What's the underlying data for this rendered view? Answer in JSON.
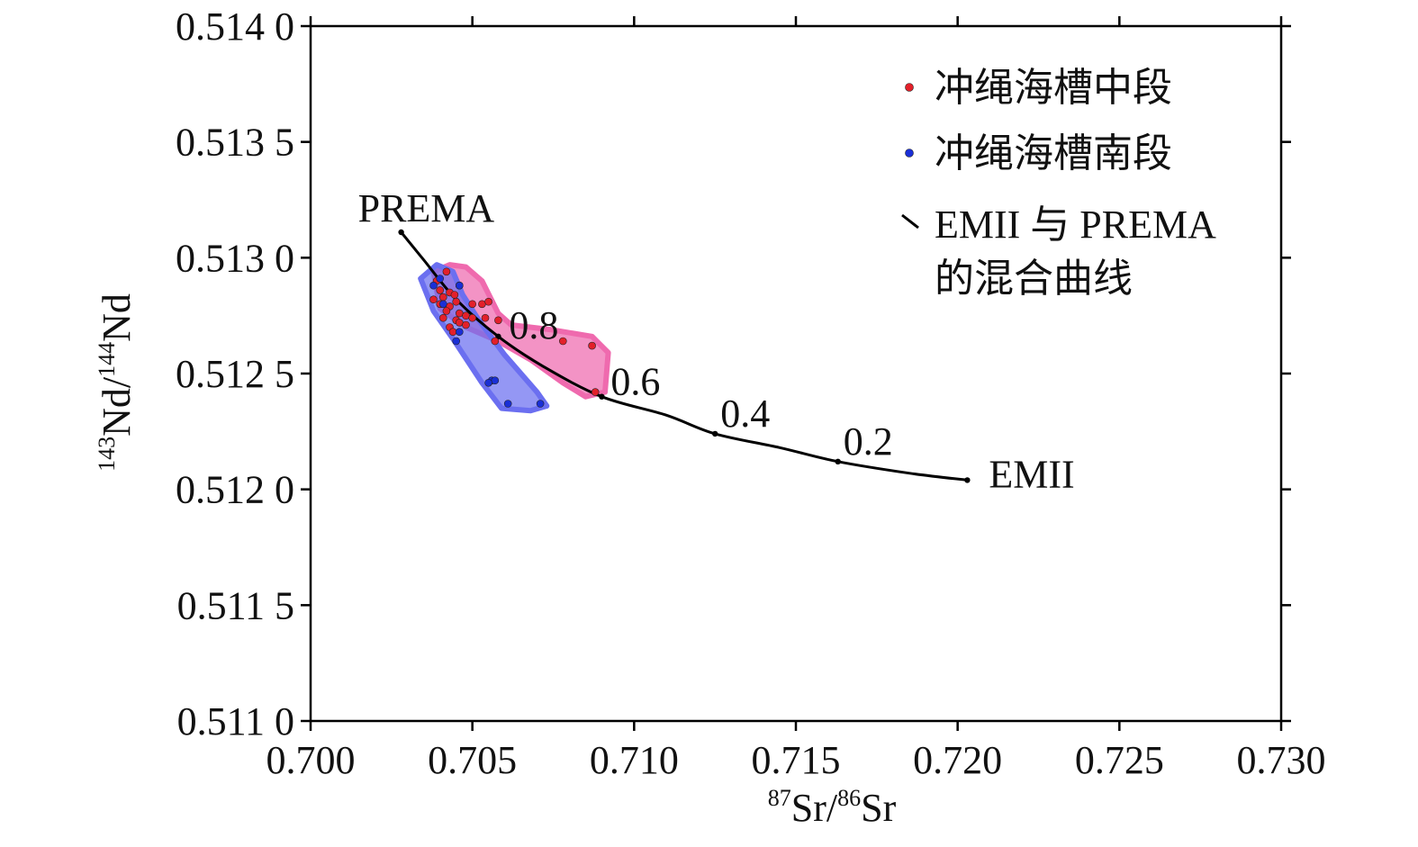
{
  "chart_data": {
    "type": "scatter",
    "title": "",
    "xlabel": {
      "sup1": "87",
      "base1": "Sr/",
      "sup2": "86",
      "base2": "Sr"
    },
    "ylabel": {
      "sup1": "143",
      "base1": "Nd/",
      "sup2": "144",
      "base2": "Nd"
    },
    "xlim": [
      0.7,
      0.73
    ],
    "ylim": [
      0.511,
      0.514
    ],
    "x_ticks": [
      {
        "value": 0.7,
        "label": "0.700"
      },
      {
        "value": 0.705,
        "label": "0.705"
      },
      {
        "value": 0.71,
        "label": "0.710"
      },
      {
        "value": 0.715,
        "label": "0.715"
      },
      {
        "value": 0.72,
        "label": "0.720"
      },
      {
        "value": 0.725,
        "label": "0.725"
      },
      {
        "value": 0.73,
        "label": "0.730"
      }
    ],
    "y_ticks": [
      {
        "value": 0.511,
        "label": "0.511 0"
      },
      {
        "value": 0.5115,
        "label": "0.511 5"
      },
      {
        "value": 0.512,
        "label": "0.512 0"
      },
      {
        "value": 0.5125,
        "label": "0.512 5"
      },
      {
        "value": 0.513,
        "label": "0.513 0"
      },
      {
        "value": 0.5135,
        "label": "0.513 5"
      },
      {
        "value": 0.514,
        "label": "0.514 0"
      }
    ],
    "grid": false,
    "legend_position": "top-right",
    "colors": {
      "middle": "#e3202a",
      "south": "#1a2fd6",
      "middle_fill": "#ef6aae",
      "south_fill": "#6b6ff0",
      "curve": "#000000"
    },
    "series": [
      {
        "name": "冲绳海槽中段",
        "points": [
          [
            0.7042,
            0.51294
          ],
          [
            0.7039,
            0.5129
          ],
          [
            0.7046,
            0.51288
          ],
          [
            0.704,
            0.51286
          ],
          [
            0.7043,
            0.51285
          ],
          [
            0.70445,
            0.51284
          ],
          [
            0.7041,
            0.51283
          ],
          [
            0.7038,
            0.51282
          ],
          [
            0.7045,
            0.51281
          ],
          [
            0.704,
            0.5128
          ],
          [
            0.7043,
            0.51279
          ],
          [
            0.705,
            0.5128
          ],
          [
            0.7053,
            0.5128
          ],
          [
            0.7055,
            0.51281
          ],
          [
            0.7042,
            0.51277
          ],
          [
            0.7046,
            0.51276
          ],
          [
            0.7048,
            0.51275
          ],
          [
            0.7041,
            0.51274
          ],
          [
            0.705,
            0.51274
          ],
          [
            0.7054,
            0.51274
          ],
          [
            0.7045,
            0.51273
          ],
          [
            0.7058,
            0.51273
          ],
          [
            0.7046,
            0.51272
          ],
          [
            0.7048,
            0.51271
          ],
          [
            0.7043,
            0.5127
          ],
          [
            0.7044,
            0.51268
          ],
          [
            0.7057,
            0.51264
          ],
          [
            0.7078,
            0.51264
          ],
          [
            0.7087,
            0.51262
          ],
          [
            0.7088,
            0.51242
          ]
        ]
      },
      {
        "name": "冲绳海槽南段",
        "points": [
          [
            0.704,
            0.51291
          ],
          [
            0.7038,
            0.51288
          ],
          [
            0.7046,
            0.51288
          ],
          [
            0.7041,
            0.5128
          ],
          [
            0.7046,
            0.51268
          ],
          [
            0.7045,
            0.51264
          ],
          [
            0.7056,
            0.51247
          ],
          [
            0.7057,
            0.51247
          ],
          [
            0.7055,
            0.51246
          ],
          [
            0.7061,
            0.51237
          ],
          [
            0.7071,
            0.51237
          ]
        ]
      }
    ],
    "mixing_curve": {
      "name": "EMII 与 PREMA 的混合曲线",
      "points": [
        [
          0.7028,
          0.51311
        ],
        [
          0.7035,
          0.51299
        ],
        [
          0.7045,
          0.51282
        ],
        [
          0.7058,
          0.51266
        ],
        [
          0.7072,
          0.51253
        ],
        [
          0.709,
          0.5124
        ],
        [
          0.711,
          0.51232
        ],
        [
          0.7125,
          0.51224
        ],
        [
          0.7145,
          0.51218
        ],
        [
          0.7163,
          0.51212
        ],
        [
          0.7185,
          0.51207
        ],
        [
          0.7203,
          0.51204
        ]
      ],
      "marks": [
        {
          "x": 0.7028,
          "y": 0.51311,
          "label": "PREMA"
        },
        {
          "x": 0.7058,
          "y": 0.51266,
          "label": "0.8"
        },
        {
          "x": 0.709,
          "y": 0.5124,
          "label": "0.6"
        },
        {
          "x": 0.7125,
          "y": 0.51224,
          "label": "0.4"
        },
        {
          "x": 0.7163,
          "y": 0.51212,
          "label": "0.2"
        },
        {
          "x": 0.7203,
          "y": 0.51204,
          "label": "EMII"
        }
      ]
    },
    "fields": [
      {
        "name": "middle",
        "polygon": [
          [
            0.7038,
            0.51294
          ],
          [
            0.7043,
            0.51297
          ],
          [
            0.7048,
            0.51296
          ],
          [
            0.7053,
            0.5129
          ],
          [
            0.7058,
            0.51276
          ],
          [
            0.7062,
            0.51271
          ],
          [
            0.7074,
            0.51269
          ],
          [
            0.7087,
            0.51266
          ],
          [
            0.7092,
            0.51259
          ],
          [
            0.7091,
            0.51242
          ],
          [
            0.7085,
            0.5124
          ],
          [
            0.7078,
            0.51246
          ],
          [
            0.7068,
            0.51256
          ],
          [
            0.7058,
            0.51264
          ],
          [
            0.7048,
            0.5127
          ],
          [
            0.704,
            0.51278
          ]
        ]
      },
      {
        "name": "south",
        "polygon": [
          [
            0.7034,
            0.51291
          ],
          [
            0.7039,
            0.51297
          ],
          [
            0.7044,
            0.51294
          ],
          [
            0.7047,
            0.51284
          ],
          [
            0.7052,
            0.51273
          ],
          [
            0.706,
            0.51258
          ],
          [
            0.707,
            0.51242
          ],
          [
            0.7073,
            0.51236
          ],
          [
            0.7068,
            0.51234
          ],
          [
            0.7059,
            0.51235
          ],
          [
            0.7053,
            0.51246
          ],
          [
            0.7044,
            0.51265
          ],
          [
            0.7038,
            0.51277
          ]
        ]
      }
    ],
    "legend": [
      {
        "label": "冲绳海槽中段",
        "marker": "dot",
        "color": "#e3202a"
      },
      {
        "label": "冲绳海槽南段",
        "marker": "dot",
        "color": "#1a2fd6"
      },
      {
        "label": "EMII 与 PREMA",
        "label2": "的混合曲线",
        "marker": "line",
        "color": "#000000"
      }
    ]
  }
}
